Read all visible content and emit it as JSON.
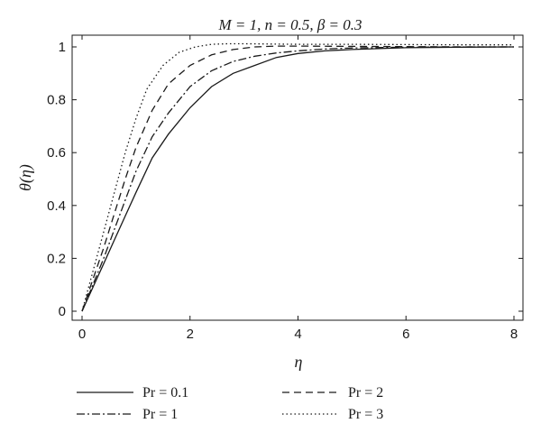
{
  "chart_data": {
    "type": "line",
    "title": "M = 1, n = 0.5, β = 0.3",
    "xlabel": "η",
    "ylabel": "θ(η)",
    "xlim": [
      0,
      8
    ],
    "ylim": [
      0,
      1
    ],
    "xticks": [
      0,
      2,
      4,
      6,
      8
    ],
    "yticks": [
      0,
      0.2,
      0.4,
      0.6,
      0.8,
      1
    ],
    "grid": false,
    "legend_position": "bottom",
    "series": [
      {
        "name": "Pr = 0.1",
        "dash": "solid",
        "x": [
          0,
          0.2,
          0.4,
          0.6,
          0.8,
          1.0,
          1.3,
          1.6,
          2.0,
          2.4,
          2.8,
          3.2,
          3.6,
          4.0,
          4.5,
          5.0,
          6.0,
          7.0,
          8.0
        ],
        "y": [
          0,
          0.09,
          0.18,
          0.27,
          0.36,
          0.45,
          0.58,
          0.67,
          0.77,
          0.85,
          0.9,
          0.93,
          0.96,
          0.975,
          0.985,
          0.99,
          0.997,
          0.999,
          1.0
        ]
      },
      {
        "name": "Pr = 1",
        "dash": "dashdot",
        "x": [
          0,
          0.2,
          0.4,
          0.6,
          0.8,
          1.0,
          1.3,
          1.6,
          2.0,
          2.4,
          2.8,
          3.2,
          3.6,
          4.0,
          4.5,
          5.0,
          6.0,
          7.0,
          8.0
        ],
        "y": [
          0,
          0.1,
          0.2,
          0.31,
          0.42,
          0.53,
          0.66,
          0.75,
          0.85,
          0.91,
          0.945,
          0.965,
          0.977,
          0.985,
          0.992,
          0.996,
          0.999,
          1.0,
          1.0
        ]
      },
      {
        "name": "Pr = 2",
        "dash": "dash",
        "x": [
          0,
          0.2,
          0.4,
          0.6,
          0.8,
          1.0,
          1.3,
          1.6,
          2.0,
          2.4,
          2.8,
          3.2,
          3.6,
          4.0,
          5.0,
          6.0,
          7.0,
          8.0
        ],
        "y": [
          0,
          0.12,
          0.24,
          0.37,
          0.5,
          0.62,
          0.76,
          0.86,
          0.93,
          0.97,
          0.99,
          1.0,
          1.003,
          1.003,
          1.002,
          1.001,
          1.0,
          1.0
        ]
      },
      {
        "name": "Pr = 3",
        "dash": "dot",
        "x": [
          0,
          0.2,
          0.4,
          0.6,
          0.8,
          1.0,
          1.2,
          1.5,
          1.8,
          2.1,
          2.4,
          2.7,
          3.0,
          3.5,
          4.0,
          5.0,
          6.0,
          7.0,
          8.0
        ],
        "y": [
          0,
          0.15,
          0.3,
          0.45,
          0.6,
          0.73,
          0.84,
          0.93,
          0.98,
          1.0,
          1.01,
          1.012,
          1.012,
          1.011,
          1.01,
          1.01,
          1.009,
          1.008,
          1.008
        ]
      }
    ]
  }
}
